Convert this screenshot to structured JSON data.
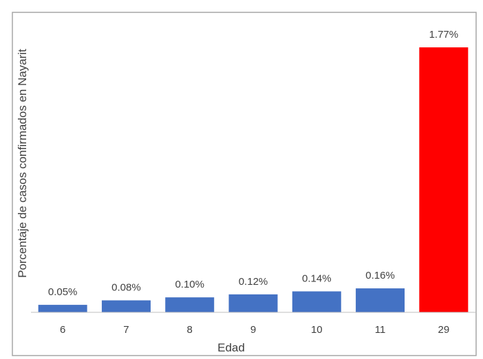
{
  "chart_data": {
    "type": "bar",
    "title": "",
    "xlabel": "Edad",
    "ylabel": "Porcentaje de casos confirmados en Nayarit",
    "categories": [
      "6",
      "7",
      "8",
      "9",
      "10",
      "11",
      "29"
    ],
    "values": [
      0.05,
      0.08,
      0.1,
      0.12,
      0.14,
      0.16,
      1.77
    ],
    "data_labels": [
      "0.05%",
      "0.08%",
      "0.10%",
      "0.12%",
      "0.14%",
      "0.16%",
      "1.77%"
    ],
    "bar_colors": [
      "#4472C4",
      "#4472C4",
      "#4472C4",
      "#4472C4",
      "#4472C4",
      "#4472C4",
      "#FF0000"
    ],
    "ylim": [
      0,
      1.9
    ],
    "grid": false,
    "legend": "none",
    "plot_border_color": "#A6A6A6",
    "axis_line_color": "#BFBFBF"
  }
}
